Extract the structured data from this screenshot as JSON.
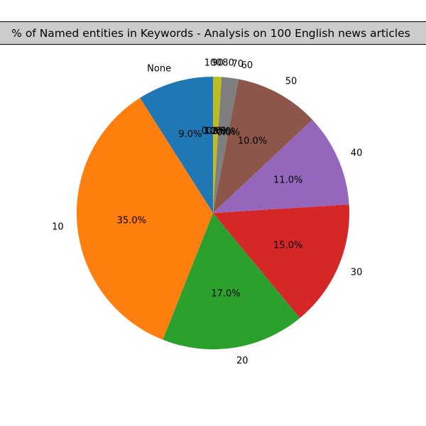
{
  "chart_data": {
    "type": "pie",
    "title": "% of Named entities in Keywords - Analysis on 100 English news articles",
    "categories": [
      "None",
      "10",
      "20",
      "30",
      "40",
      "50",
      "60",
      "70",
      "80",
      "90",
      "100"
    ],
    "values": [
      9.0,
      35.0,
      17.0,
      15.0,
      11.0,
      10.0,
      0.0,
      2.0,
      0.0,
      1.0,
      0.0
    ],
    "value_labels": [
      "9.0%",
      "35.0%",
      "17.0%",
      "15.0%",
      "11.0%",
      "10.0%",
      "0.0%",
      "2.0%",
      "0.0%",
      "1.0%",
      "0.0%"
    ],
    "colors": [
      "#1f77b4",
      "#ff7f0e",
      "#2ca02c",
      "#d62728",
      "#9467bd",
      "#8c564b",
      "#e377c2",
      "#7f7f7f",
      "#bcbd22",
      "#bcbd22",
      "#17becf"
    ],
    "start_angle_deg": 90,
    "direction": "counterclockwise",
    "legend": "none"
  }
}
